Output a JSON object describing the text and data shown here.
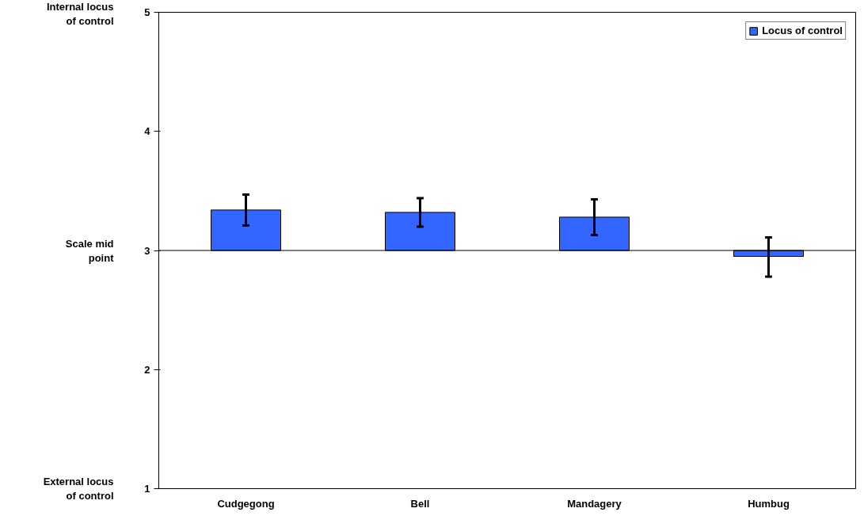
{
  "chart_data": {
    "type": "bar",
    "categories": [
      "Cudgegong",
      "Bell",
      "Mandagery",
      "Humbug"
    ],
    "series": [
      {
        "name": "Locus of control",
        "color": "#3366ff",
        "values": [
          0.34,
          0.32,
          0.28,
          -0.05
        ],
        "base": [
          3,
          3,
          3,
          3
        ],
        "errors": [
          [
            3.21,
            3.47
          ],
          [
            3.2,
            3.44
          ],
          [
            3.13,
            3.43
          ],
          [
            2.78,
            3.11
          ]
        ]
      }
    ],
    "ylim": [
      1,
      5
    ],
    "yticks": [
      1,
      2,
      3,
      4,
      5
    ],
    "annotations": [
      "Internal locus of control",
      "Scale mid point",
      "External locus of control"
    ],
    "ref_lines": [
      {
        "axis": "y",
        "value": 3,
        "color": "#000000"
      }
    ],
    "grid": false,
    "legend": "top right"
  }
}
